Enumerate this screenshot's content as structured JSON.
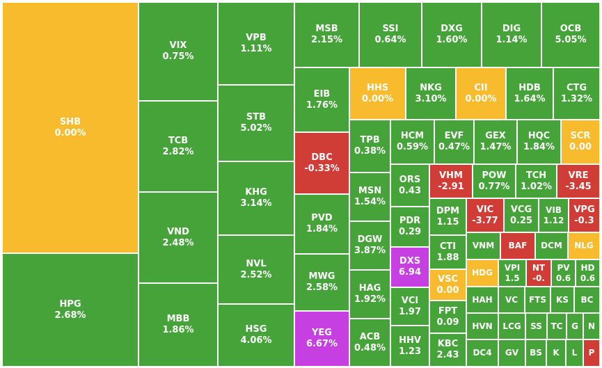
{
  "chart_data": {
    "type": "treemap",
    "colors": {
      "up": "#46a33a",
      "ref": "#f7bb2d",
      "down": "#d03c36",
      "ceil": "#c63fe0"
    },
    "tiles": [
      {
        "ticker": "SHB",
        "value": "0.00%",
        "status": "ref"
      },
      {
        "ticker": "HPG",
        "value": "2.68%",
        "status": "up"
      },
      {
        "ticker": "VIX",
        "value": "0.75%",
        "status": "up"
      },
      {
        "ticker": "TCB",
        "value": "2.82%",
        "status": "up"
      },
      {
        "ticker": "VND",
        "value": "2.48%",
        "status": "up"
      },
      {
        "ticker": "MBB",
        "value": "1.86%",
        "status": "up"
      },
      {
        "ticker": "VPB",
        "value": "1.11%",
        "status": "up"
      },
      {
        "ticker": "STB",
        "value": "5.02%",
        "status": "up"
      },
      {
        "ticker": "KHG",
        "value": "3.14%",
        "status": "up"
      },
      {
        "ticker": "NVL",
        "value": "2.52%",
        "status": "up"
      },
      {
        "ticker": "HSG",
        "value": "4.06%",
        "status": "up"
      },
      {
        "ticker": "MSB",
        "value": "2.15%",
        "status": "up"
      },
      {
        "ticker": "SSI",
        "value": "0.64%",
        "status": "up"
      },
      {
        "ticker": "DXG",
        "value": "1.60%",
        "status": "up"
      },
      {
        "ticker": "DIG",
        "value": "1.14%",
        "status": "up"
      },
      {
        "ticker": "OCB",
        "value": "5.05%",
        "status": "up"
      },
      {
        "ticker": "EIB",
        "value": "1.76%",
        "status": "up"
      },
      {
        "ticker": "DBC",
        "value": "-0.33%",
        "status": "down"
      },
      {
        "ticker": "PVD",
        "value": "1.84%",
        "status": "up"
      },
      {
        "ticker": "MWG",
        "value": "2.58%",
        "status": "up"
      },
      {
        "ticker": "YEG",
        "value": "6.67%",
        "status": "ceil"
      },
      {
        "ticker": "HHS",
        "value": "0.00%",
        "status": "ref"
      },
      {
        "ticker": "NKG",
        "value": "3.10%",
        "status": "up"
      },
      {
        "ticker": "CII",
        "value": "0.00%",
        "status": "ref"
      },
      {
        "ticker": "HDB",
        "value": "1.64%",
        "status": "up"
      },
      {
        "ticker": "CTG",
        "value": "1.32%",
        "status": "up"
      },
      {
        "ticker": "TPB",
        "value": "0.38%",
        "status": "up"
      },
      {
        "ticker": "HCM",
        "value": "0.59%",
        "status": "up"
      },
      {
        "ticker": "EVF",
        "value": "0.47%",
        "status": "up"
      },
      {
        "ticker": "GEX",
        "value": "1.47%",
        "status": "up"
      },
      {
        "ticker": "HQC",
        "value": "1.84%",
        "status": "up"
      },
      {
        "ticker": "SCR",
        "value": "0.00",
        "status": "ref"
      },
      {
        "ticker": "MSN",
        "value": "1.54%",
        "status": "up"
      },
      {
        "ticker": "ORS",
        "value": "0.43",
        "status": "up"
      },
      {
        "ticker": "VHM",
        "value": "-2.91",
        "status": "down"
      },
      {
        "ticker": "POW",
        "value": "0.77%",
        "status": "up"
      },
      {
        "ticker": "TCH",
        "value": "1.02%",
        "status": "up"
      },
      {
        "ticker": "VRE",
        "value": "-3.45",
        "status": "down"
      },
      {
        "ticker": "DGW",
        "value": "3.87%",
        "status": "up"
      },
      {
        "ticker": "PDR",
        "value": "0.29",
        "status": "up"
      },
      {
        "ticker": "DPM",
        "value": "1.15",
        "status": "up"
      },
      {
        "ticker": "VIC",
        "value": "-3.77",
        "status": "down"
      },
      {
        "ticker": "VCG",
        "value": "0.25",
        "status": "up"
      },
      {
        "ticker": "VIB",
        "value": "1.12",
        "status": "up"
      },
      {
        "ticker": "VPG",
        "value": "-0.3",
        "status": "down"
      },
      {
        "ticker": "DXS",
        "value": "6.94",
        "status": "ceil"
      },
      {
        "ticker": "HAG",
        "value": "1.92%",
        "status": "up"
      },
      {
        "ticker": "CTI",
        "value": "1.88",
        "status": "up"
      },
      {
        "ticker": "VNM",
        "value": "",
        "status": "up"
      },
      {
        "ticker": "BAF",
        "value": "",
        "status": "down"
      },
      {
        "ticker": "DCM",
        "value": "",
        "status": "up"
      },
      {
        "ticker": "NLG",
        "value": "",
        "status": "ref"
      },
      {
        "ticker": "VSC",
        "value": "0.00",
        "status": "ref"
      },
      {
        "ticker": "HDG",
        "value": "",
        "status": "ref"
      },
      {
        "ticker": "VPI",
        "value": "1.5",
        "status": "up"
      },
      {
        "ticker": "NT",
        "value": "-0.",
        "status": "down"
      },
      {
        "ticker": "PV",
        "value": "0.6",
        "status": "up"
      },
      {
        "ticker": "HD",
        "value": "0.6",
        "status": "up"
      },
      {
        "ticker": "VCI",
        "value": "1.97",
        "status": "up"
      },
      {
        "ticker": "HAH",
        "value": "",
        "status": "up"
      },
      {
        "ticker": "VC",
        "value": "",
        "status": "up"
      },
      {
        "ticker": "FTS",
        "value": "",
        "status": "up"
      },
      {
        "ticker": "KS",
        "value": "",
        "status": "up"
      },
      {
        "ticker": "BC",
        "value": "",
        "status": "up"
      },
      {
        "ticker": "FPT",
        "value": "0.09",
        "status": "up"
      },
      {
        "ticker": "HVN",
        "value": "",
        "status": "up"
      },
      {
        "ticker": "LCG",
        "value": "",
        "status": "up"
      },
      {
        "ticker": "SS",
        "value": "",
        "status": "up"
      },
      {
        "ticker": "TC",
        "value": "",
        "status": "up"
      },
      {
        "ticker": "G",
        "value": "",
        "status": "up"
      },
      {
        "ticker": "N",
        "value": "",
        "status": "up"
      },
      {
        "ticker": "ACB",
        "value": "0.48%",
        "status": "up"
      },
      {
        "ticker": "HHV",
        "value": "1.23",
        "status": "up"
      },
      {
        "ticker": "KBC",
        "value": "2.43",
        "status": "up"
      },
      {
        "ticker": "DC4",
        "value": "",
        "status": "up"
      },
      {
        "ticker": "GV",
        "value": "",
        "status": "up"
      },
      {
        "ticker": "BS",
        "value": "",
        "status": "up"
      },
      {
        "ticker": "K",
        "value": "",
        "status": "up"
      },
      {
        "ticker": "L",
        "value": "",
        "status": "up"
      },
      {
        "ticker": "P",
        "value": "",
        "status": "down"
      }
    ]
  }
}
